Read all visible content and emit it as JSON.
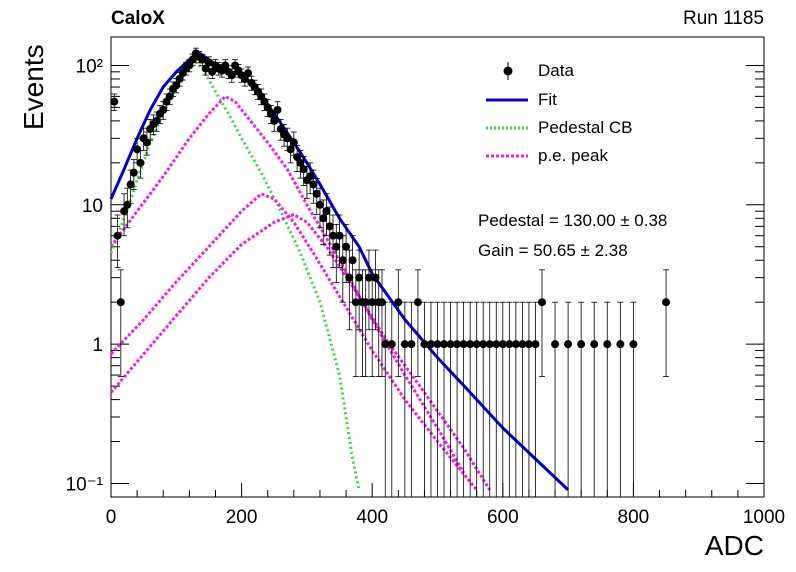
{
  "header": {
    "experiment": "CaloX",
    "run": "Run 1185"
  },
  "fit_results": {
    "pedestal": "Pedestal = 130.00 ± 0.38",
    "gain": "Gain = 50.65 ± 2.38"
  },
  "colors": {
    "data": "#000000",
    "fit": "#0000cc",
    "pedestal": "#33dd33",
    "pe": "#ee22ee"
  },
  "chart_data": {
    "type": "scatter",
    "xlabel": "ADC",
    "ylabel": "Events",
    "xlim": [
      0,
      1000
    ],
    "ylim": [
      0.08,
      160
    ],
    "yscale": "log",
    "x_ticks": [
      0,
      200,
      400,
      600,
      800,
      1000
    ],
    "y_ticks": [
      {
        "v": 0.1,
        "label": "10⁻¹"
      },
      {
        "v": 1,
        "label": "1"
      },
      {
        "v": 10,
        "label": "10"
      },
      {
        "v": 100,
        "label": "10²"
      }
    ],
    "legend": {
      "position": "top-right",
      "entries": [
        "Data",
        "Fit",
        "Pedestal CB",
        "p.e. peak"
      ]
    },
    "series": [
      {
        "name": "Data",
        "style": "points-with-errors",
        "points": [
          [
            5,
            55
          ],
          [
            10,
            6
          ],
          [
            15,
            2
          ],
          [
            20,
            9
          ],
          [
            25,
            10
          ],
          [
            30,
            14
          ],
          [
            35,
            17
          ],
          [
            40,
            25
          ],
          [
            45,
            20
          ],
          [
            50,
            30
          ],
          [
            55,
            28
          ],
          [
            60,
            35
          ],
          [
            65,
            38
          ],
          [
            70,
            40
          ],
          [
            75,
            45
          ],
          [
            80,
            48
          ],
          [
            85,
            55
          ],
          [
            90,
            60
          ],
          [
            95,
            68
          ],
          [
            100,
            72
          ],
          [
            105,
            80
          ],
          [
            110,
            88
          ],
          [
            115,
            95
          ],
          [
            120,
            100
          ],
          [
            125,
            110
          ],
          [
            130,
            122
          ],
          [
            135,
            115
          ],
          [
            140,
            110
          ],
          [
            145,
            95
          ],
          [
            150,
            105
          ],
          [
            155,
            90
          ],
          [
            160,
            100
          ],
          [
            165,
            95
          ],
          [
            170,
            92
          ],
          [
            175,
            100
          ],
          [
            180,
            90
          ],
          [
            185,
            85
          ],
          [
            190,
            100
          ],
          [
            195,
            92
          ],
          [
            200,
            85
          ],
          [
            205,
            80
          ],
          [
            210,
            88
          ],
          [
            215,
            75
          ],
          [
            220,
            70
          ],
          [
            225,
            65
          ],
          [
            230,
            60
          ],
          [
            235,
            55
          ],
          [
            240,
            50
          ],
          [
            245,
            45
          ],
          [
            250,
            40
          ],
          [
            255,
            48
          ],
          [
            260,
            35
          ],
          [
            265,
            32
          ],
          [
            270,
            30
          ],
          [
            275,
            25
          ],
          [
            280,
            28
          ],
          [
            285,
            22
          ],
          [
            290,
            20
          ],
          [
            295,
            18
          ],
          [
            300,
            15
          ],
          [
            305,
            16
          ],
          [
            310,
            14
          ],
          [
            315,
            12
          ],
          [
            320,
            10
          ],
          [
            325,
            8
          ],
          [
            330,
            9
          ],
          [
            335,
            7
          ],
          [
            340,
            6
          ],
          [
            345,
            5
          ],
          [
            350,
            6
          ],
          [
            355,
            4
          ],
          [
            360,
            5
          ],
          [
            365,
            3
          ],
          [
            370,
            4
          ],
          [
            375,
            2
          ],
          [
            380,
            3
          ],
          [
            385,
            2
          ],
          [
            390,
            2
          ],
          [
            395,
            3
          ],
          [
            400,
            2
          ],
          [
            405,
            3
          ],
          [
            410,
            2
          ],
          [
            415,
            2
          ],
          [
            420,
            1
          ],
          [
            430,
            1
          ],
          [
            440,
            2
          ],
          [
            450,
            1
          ],
          [
            460,
            1
          ],
          [
            470,
            2
          ],
          [
            480,
            1
          ],
          [
            490,
            1
          ],
          [
            500,
            1
          ],
          [
            510,
            1
          ],
          [
            520,
            1
          ],
          [
            530,
            1
          ],
          [
            540,
            1
          ],
          [
            550,
            1
          ],
          [
            560,
            1
          ],
          [
            570,
            1
          ],
          [
            580,
            1
          ],
          [
            590,
            1
          ],
          [
            600,
            1
          ],
          [
            610,
            1
          ],
          [
            620,
            1
          ],
          [
            630,
            1
          ],
          [
            640,
            1
          ],
          [
            650,
            1
          ],
          [
            660,
            2
          ],
          [
            680,
            1
          ],
          [
            700,
            1
          ],
          [
            720,
            1
          ],
          [
            740,
            1
          ],
          [
            760,
            1
          ],
          [
            780,
            1
          ],
          [
            800,
            1
          ],
          [
            850,
            2
          ]
        ]
      },
      {
        "name": "Fit",
        "style": "line",
        "points": [
          [
            0,
            11
          ],
          [
            20,
            18
          ],
          [
            40,
            30
          ],
          [
            60,
            48
          ],
          [
            80,
            70
          ],
          [
            100,
            90
          ],
          [
            120,
            110
          ],
          [
            133,
            125
          ],
          [
            150,
            110
          ],
          [
            170,
            95
          ],
          [
            200,
            85
          ],
          [
            220,
            70
          ],
          [
            250,
            45
          ],
          [
            280,
            28
          ],
          [
            300,
            20
          ],
          [
            320,
            14
          ],
          [
            350,
            8
          ],
          [
            380,
            5
          ],
          [
            400,
            3.2
          ],
          [
            450,
            1.5
          ],
          [
            500,
            0.8
          ],
          [
            550,
            0.45
          ],
          [
            600,
            0.25
          ],
          [
            650,
            0.15
          ],
          [
            700,
            0.09
          ]
        ]
      },
      {
        "name": "Pedestal CB",
        "style": "dotted",
        "points": [
          [
            0,
            4.5
          ],
          [
            20,
            8
          ],
          [
            40,
            15
          ],
          [
            60,
            28
          ],
          [
            80,
            45
          ],
          [
            100,
            70
          ],
          [
            120,
            100
          ],
          [
            130,
            105
          ],
          [
            140,
            95
          ],
          [
            160,
            65
          ],
          [
            180,
            45
          ],
          [
            200,
            30
          ],
          [
            230,
            17
          ],
          [
            260,
            9
          ],
          [
            290,
            4.5
          ],
          [
            320,
            2
          ],
          [
            350,
            0.6
          ],
          [
            370,
            0.15
          ],
          [
            380,
            0.09
          ]
        ]
      },
      {
        "name": "p.e. peak",
        "style": "dotted",
        "points": [
          [
            0,
            5
          ],
          [
            40,
            9
          ],
          [
            80,
            16
          ],
          [
            120,
            30
          ],
          [
            150,
            45
          ],
          [
            175,
            60
          ],
          [
            190,
            55
          ],
          [
            210,
            42
          ],
          [
            240,
            28
          ],
          [
            270,
            18
          ],
          [
            300,
            10
          ],
          [
            350,
            4
          ],
          [
            400,
            1.5
          ],
          [
            450,
            0.6
          ],
          [
            500,
            0.25
          ],
          [
            540,
            0.12
          ]
        ]
      },
      {
        "name": "",
        "style": "dotted",
        "points": [
          [
            0,
            0.85
          ],
          [
            50,
            1.5
          ],
          [
            100,
            2.8
          ],
          [
            150,
            5
          ],
          [
            200,
            9
          ],
          [
            230,
            12
          ],
          [
            250,
            11
          ],
          [
            280,
            7.5
          ],
          [
            310,
            4.5
          ],
          [
            350,
            2.2
          ],
          [
            400,
            0.9
          ],
          [
            450,
            0.4
          ],
          [
            500,
            0.2
          ],
          [
            560,
            0.09
          ]
        ]
      },
      {
        "name": "",
        "style": "dotted",
        "points": [
          [
            0,
            0.45
          ],
          [
            50,
            0.85
          ],
          [
            100,
            1.6
          ],
          [
            150,
            3
          ],
          [
            200,
            5.2
          ],
          [
            250,
            7.5
          ],
          [
            280,
            8.5
          ],
          [
            300,
            7.5
          ],
          [
            330,
            5
          ],
          [
            370,
            2.6
          ],
          [
            420,
            1.1
          ],
          [
            480,
            0.45
          ],
          [
            540,
            0.18
          ],
          [
            580,
            0.09
          ]
        ]
      }
    ]
  }
}
